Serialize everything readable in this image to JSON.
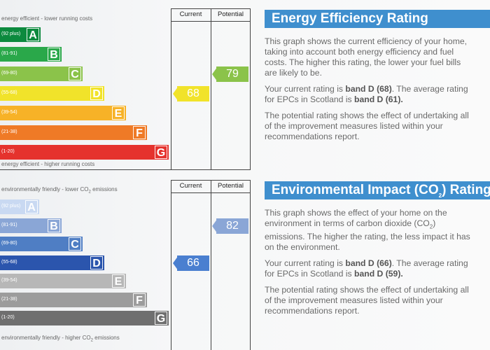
{
  "energy_chart": {
    "top_caption": "energy efficient - lower running costs",
    "bottom_caption": "energy efficient - higher running costs",
    "col_current": "Current",
    "col_potential": "Potential",
    "bands": [
      {
        "code": "(92 plus)",
        "letter": "A",
        "color": "#0c8a3e"
      },
      {
        "code": "(81-91)",
        "letter": "B",
        "color": "#2aa84a"
      },
      {
        "code": "(69-80)",
        "letter": "C",
        "color": "#8bc34a"
      },
      {
        "code": "(55-68)",
        "letter": "D",
        "color": "#f1e32a"
      },
      {
        "code": "(39-54)",
        "letter": "E",
        "color": "#f7b227"
      },
      {
        "code": "(21-38)",
        "letter": "F",
        "color": "#ef7a26"
      },
      {
        "code": "(1-20)",
        "letter": "G",
        "color": "#e5322d"
      }
    ],
    "current": {
      "value": "68",
      "band": "D",
      "color": "#f1e32a"
    },
    "potential": {
      "value": "79",
      "band": "C",
      "color": "#8bc34a"
    }
  },
  "env_chart": {
    "top_caption": "environmentally friendly - lower CO2 emissions",
    "bottom_caption": "environmentally friendly - higher CO2 emissions",
    "col_current": "Current",
    "col_potential": "Potential",
    "bands": [
      {
        "code": "(92 plus)",
        "letter": "A",
        "color": "#c9d9f2"
      },
      {
        "code": "(81-91)",
        "letter": "B",
        "color": "#8aa6d6"
      },
      {
        "code": "(69-80)",
        "letter": "C",
        "color": "#4f7ec4"
      },
      {
        "code": "(55-68)",
        "letter": "D",
        "color": "#2b55ad"
      },
      {
        "code": "(39-54)",
        "letter": "E",
        "color": "#b7b7b7"
      },
      {
        "code": "(21-38)",
        "letter": "F",
        "color": "#9c9c9c"
      },
      {
        "code": "(1-20)",
        "letter": "G",
        "color": "#6f6f6f"
      }
    ],
    "current": {
      "value": "66",
      "band": "D",
      "color": "#4a7fd0"
    },
    "potential": {
      "value": "82",
      "band": "B",
      "color": "#8aa6d6"
    }
  },
  "energy_panel": {
    "title": "Energy Efficiency Rating",
    "p1_l1": "This graph shows the current efficiency of your home,",
    "p1_l2": "taking into account both energy efficiency and fuel",
    "p1_l3": "costs. The higher this rating, the lower your fuel bills",
    "p1_l4": "are likely to be.",
    "p2_a": "Your current rating is ",
    "p2_b": "band D (68)",
    "p2_c": ". The average rating",
    "p2_d": "for EPCs in Scotland is ",
    "p2_e": "band D (61).",
    "p3_l1": "The potential rating shows the effect of undertaking all",
    "p3_l2": "of the improvement measures listed within your",
    "p3_l3": "recommendations report."
  },
  "env_panel": {
    "title_a": "Environmental Impact (CO",
    "title_sub": "2",
    "title_b": ") Rating",
    "p1_l1": "This graph shows the effect of your home on the",
    "p1_l2a": "environment in terms of carbon dioxide (CO",
    "p1_l2sub": "2",
    "p1_l2b": ")",
    "p1_l3": "emissions. The higher the rating, the less impact it has",
    "p1_l4": "on the environment.",
    "p2_a": "Your current rating is ",
    "p2_b": "band D (66)",
    "p2_c": ". The average rating",
    "p2_d": "for EPCs in Scotland is ",
    "p2_e": "band D (59).",
    "p3_l1": "The potential rating shows the effect of undertaking all",
    "p3_l2": "of the improvement measures listed within your",
    "p3_l3": "recommendations report."
  }
}
